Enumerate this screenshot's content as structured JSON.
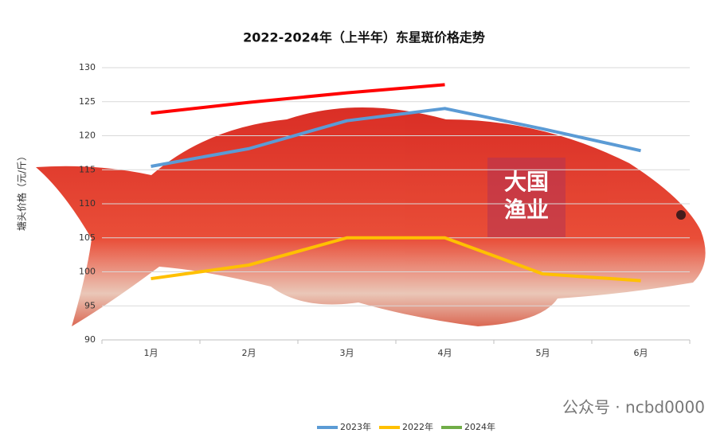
{
  "chart_data": {
    "type": "line",
    "title": "2022-2024年（上半年）东星斑价格走势",
    "y_label": "塘头价格（元/斤）",
    "categories": [
      "1月",
      "2月",
      "3月",
      "4月",
      "5月",
      "6月"
    ],
    "series": [
      {
        "name": "2023年",
        "color": "#5b9bd5",
        "values": [
          115.5,
          118.1,
          122.2,
          124.0,
          121.0,
          117.8
        ]
      },
      {
        "name": "2022年",
        "color": "#ffc000",
        "values": [
          99.0,
          101.0,
          105.0,
          105.0,
          99.7,
          98.7
        ]
      },
      {
        "name": "2024年",
        "color": "#70ad47",
        "line_color": "#ff0000",
        "values": [
          123.3,
          124.9,
          126.3,
          127.5,
          null,
          null
        ]
      }
    ],
    "ylim": [
      90,
      130
    ],
    "yticks": [
      90,
      95,
      100,
      105,
      110,
      115,
      120,
      125,
      130
    ],
    "grid": true,
    "legend": "bottom",
    "watermark": [
      "大国",
      "渔业"
    ],
    "footer": "公众号 · ncbd0000"
  }
}
